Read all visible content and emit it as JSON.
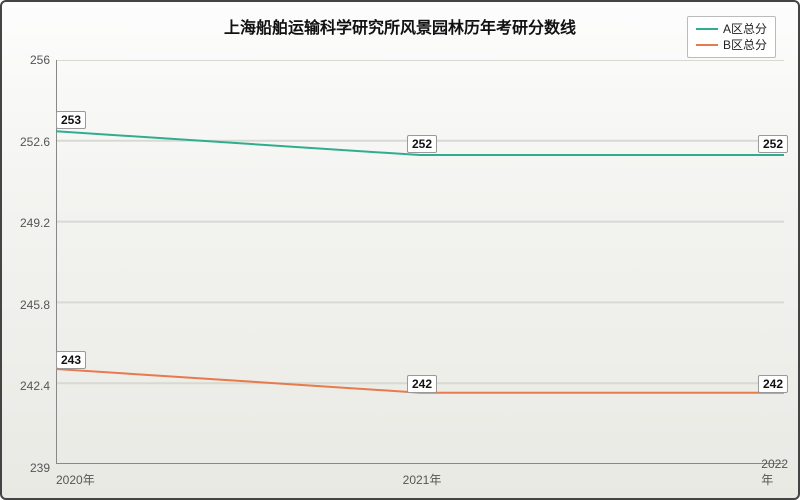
{
  "chart": {
    "type": "line",
    "title": "上海船舶运输科学研究所风景园林历年考研分数线",
    "title_fontsize": 16,
    "background_gradient": [
      "#fdfdfd",
      "#f3f3f0",
      "#e9e9e4"
    ],
    "border_color": "#444444",
    "grid_color": "#d9d9d4",
    "axis_line_color": "#888888",
    "tick_font_color": "#555555",
    "tick_fontsize": 12,
    "x": {
      "categories": [
        "2020年",
        "2021年",
        "2022年"
      ],
      "positions": [
        0,
        0.5,
        1
      ]
    },
    "y": {
      "min": 239,
      "max": 256,
      "ticks": [
        239,
        242.4,
        245.8,
        249.2,
        252.6,
        256
      ]
    },
    "series": [
      {
        "name": "A区总分",
        "color": "#2fae8f",
        "line_width": 2,
        "values": [
          253,
          252,
          252
        ],
        "point_labels": [
          "253",
          "252",
          "252"
        ]
      },
      {
        "name": "B区总分",
        "color": "#e87b4d",
        "line_width": 2,
        "values": [
          243,
          242,
          242
        ],
        "point_labels": [
          "243",
          "242",
          "242"
        ]
      }
    ],
    "legend": {
      "position": "top-right",
      "background": "#ffffff",
      "border_color": "#bbbbbb",
      "fontsize": 12
    },
    "point_label_style": {
      "background": "#ffffff",
      "border_color": "#999999",
      "fontsize": 12,
      "font_weight": "bold"
    }
  }
}
